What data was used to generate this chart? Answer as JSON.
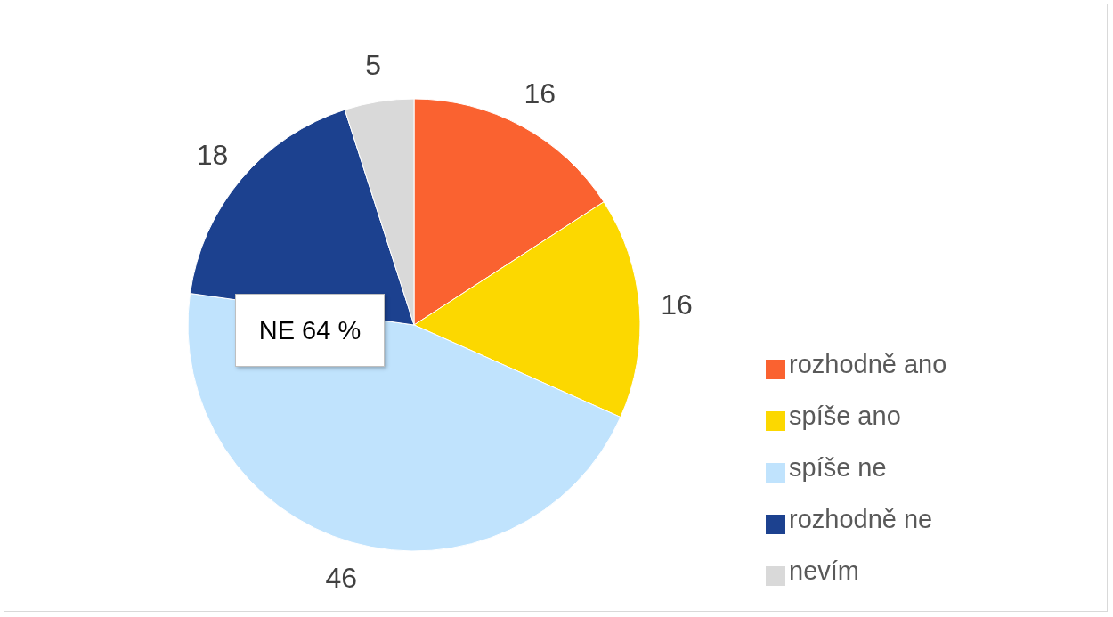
{
  "chart_data": {
    "type": "pie",
    "categories": [
      "rozhodně ano",
      "spíše ano",
      "spíše ne",
      "rozhodně ne",
      "nevím"
    ],
    "values": [
      16,
      16,
      46,
      18,
      5
    ],
    "colors": [
      "#fa6230",
      "#fcd800",
      "#c0e3fd",
      "#1c418f",
      "#d9d9d9"
    ],
    "data_labels": true,
    "legend": "right",
    "annotations": [
      "NE 64 %"
    ]
  }
}
